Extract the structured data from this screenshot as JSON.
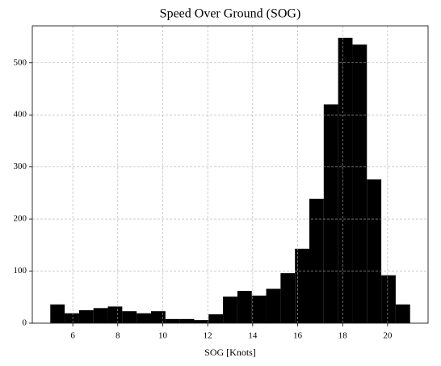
{
  "chart_data": {
    "type": "histogram",
    "title": "Speed Over Ground (SOG)",
    "xlabel": "SOG [Knots]",
    "bins": [
      5,
      5.64,
      6.28,
      6.92,
      7.56,
      8.2,
      8.84,
      9.48,
      10.12,
      10.76,
      11.4,
      12.04,
      12.68,
      13.32,
      13.96,
      14.6,
      15.24,
      15.88,
      16.52,
      17.16,
      17.8,
      18.44,
      19.08,
      19.72,
      20.36,
      21
    ],
    "values": [
      36,
      19,
      25,
      29,
      32,
      23,
      19,
      23,
      8,
      8,
      6,
      17,
      51,
      62,
      53,
      66,
      96,
      143,
      239,
      420,
      548,
      535,
      276,
      92,
      36
    ],
    "color": "#000000",
    "xlim": [
      4.2,
      21.8
    ],
    "xticks": [
      6,
      8,
      10,
      12,
      14,
      16,
      18,
      20
    ],
    "ylim": [
      0,
      571
    ],
    "yticks": [
      0,
      100,
      200,
      300,
      400,
      500
    ],
    "grid": true
  }
}
